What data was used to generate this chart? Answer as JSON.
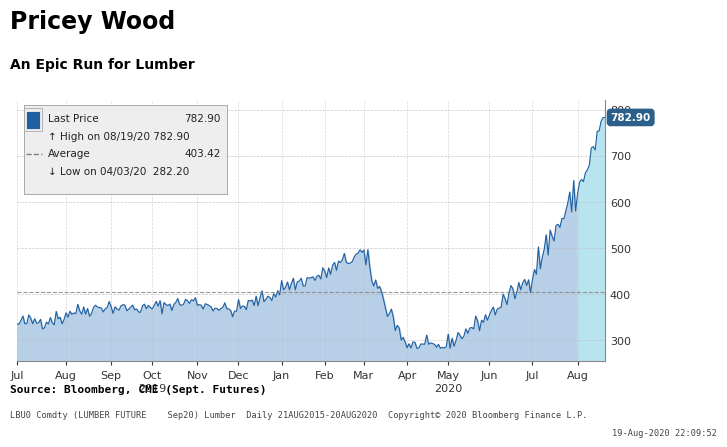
{
  "title": "Pricey Wood",
  "subtitle": "An Epic Run for Lumber",
  "last_price": 782.9,
  "high_date": "08/19/20",
  "high_value": 782.9,
  "average": 403.42,
  "low_date": "04/03/20",
  "low_value": 282.2,
  "ylim": [
    255,
    820
  ],
  "yticks": [
    300,
    400,
    500,
    600,
    700,
    800
  ],
  "source_text": "Source: Bloomberg, CME (Sept. Futures)",
  "footer_left": "LBU0 Comdty (LUMBER FUTURE    Sep20) Lumber  Daily 21AUG2015-20AUG2020",
  "copyright_text": "Copyright© 2020 Bloomberg Finance L.P.",
  "date_text": "19-Aug-2020 22:09:52",
  "fill_color_normal": "#b8cfe8",
  "fill_color_recent": "#b8e4f0",
  "line_color": "#2060a0",
  "grid_color": "#bbbbbb",
  "bg_color": "#ffffff",
  "legend_box_color": "#eeeeee",
  "last_price_label_color": "#2c5f8a",
  "month_labels": [
    "Jul",
    "Aug",
    "Sep",
    "Oct",
    "Nov",
    "Dec",
    "Jan",
    "Feb",
    "Mar",
    "Apr",
    "May",
    "Jun",
    "Jul",
    "Aug"
  ],
  "seg_lengths": [
    25,
    23,
    21,
    23,
    21,
    22,
    22,
    20,
    22,
    21,
    21,
    22,
    23,
    15
  ],
  "year_label_2019_idx": 3,
  "year_label_2020_idx": 10
}
